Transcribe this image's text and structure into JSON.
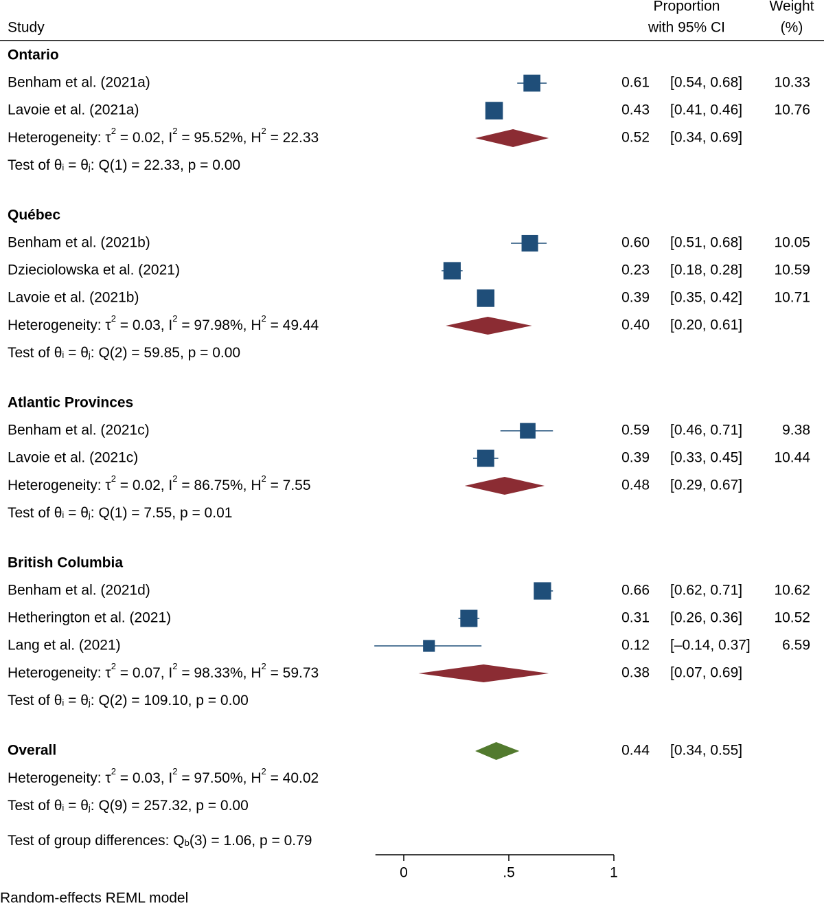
{
  "chart_data": {
    "type": "forest",
    "columns": {
      "study": "Study",
      "effect_line1": "Proportion",
      "effect_line2": "with 95% CI",
      "weight_line1": "Weight",
      "weight_line2": "(%)"
    },
    "colors": {
      "study_marker": "#1f4e79",
      "subgroup_diamond": "#8b2c33",
      "overall_diamond": "#527a2e",
      "text": "#000000"
    },
    "xaxis": {
      "range": [
        -0.135,
        1
      ],
      "ticks": [
        0,
        0.5,
        1
      ],
      "tick_labels": [
        "0",
        ".5",
        "1"
      ]
    },
    "groups": [
      {
        "name": "Ontario",
        "studies": [
          {
            "label": "Benham et al. (2021a)",
            "est": 0.61,
            "lo": 0.54,
            "hi": 0.68,
            "est_text": "0.61",
            "ci_text": "[0.54,  0.68]",
            "weight": 10.33,
            "weight_text": "10.33"
          },
          {
            "label": "Lavoie et al. (2021a)",
            "est": 0.43,
            "lo": 0.41,
            "hi": 0.46,
            "est_text": "0.43",
            "ci_text": "[0.41,  0.46]",
            "weight": 10.76,
            "weight_text": "10.76"
          }
        ],
        "summary": {
          "est": 0.52,
          "lo": 0.34,
          "hi": 0.69,
          "est_text": "0.52",
          "ci_text": "[0.34,  0.69]",
          "het": {
            "tau2": "0.02",
            "i2": "95.52%",
            "h2": "22.33"
          }
        },
        "test": {
          "df": "1",
          "q": "22.33",
          "p": "0.00"
        }
      },
      {
        "name": "Québec",
        "studies": [
          {
            "label": "Benham et al. (2021b)",
            "est": 0.6,
            "lo": 0.51,
            "hi": 0.68,
            "est_text": "0.60",
            "ci_text": "[0.51,  0.68]",
            "weight": 10.05,
            "weight_text": "10.05"
          },
          {
            "label": "Dzieciolowska et al. (2021)",
            "est": 0.23,
            "lo": 0.18,
            "hi": 0.28,
            "est_text": "0.23",
            "ci_text": "[0.18,  0.28]",
            "weight": 10.59,
            "weight_text": "10.59"
          },
          {
            "label": "Lavoie et al. (2021b)",
            "est": 0.39,
            "lo": 0.35,
            "hi": 0.42,
            "est_text": "0.39",
            "ci_text": "[0.35,  0.42]",
            "weight": 10.71,
            "weight_text": "10.71"
          }
        ],
        "summary": {
          "est": 0.4,
          "lo": 0.2,
          "hi": 0.61,
          "est_text": "0.40",
          "ci_text": "[0.20,  0.61]",
          "het": {
            "tau2": "0.03",
            "i2": "97.98%",
            "h2": "49.44"
          }
        },
        "test": {
          "df": "2",
          "q": "59.85",
          "p": "0.00"
        }
      },
      {
        "name": "Atlantic Provinces",
        "studies": [
          {
            "label": "Benham et al. (2021c)",
            "est": 0.59,
            "lo": 0.46,
            "hi": 0.71,
            "est_text": "0.59",
            "ci_text": "[0.46,  0.71]",
            "weight": 9.38,
            "weight_text": "9.38"
          },
          {
            "label": "Lavoie et al. (2021c)",
            "est": 0.39,
            "lo": 0.33,
            "hi": 0.45,
            "est_text": "0.39",
            "ci_text": "[0.33,  0.45]",
            "weight": 10.44,
            "weight_text": "10.44"
          }
        ],
        "summary": {
          "est": 0.48,
          "lo": 0.29,
          "hi": 0.67,
          "est_text": "0.48",
          "ci_text": "[0.29,  0.67]",
          "het": {
            "tau2": "0.02",
            "i2": "86.75%",
            "h2": "7.55"
          }
        },
        "test": {
          "df": "1",
          "q": "7.55",
          "p": "0.01"
        }
      },
      {
        "name": "British Columbia",
        "studies": [
          {
            "label": "Benham et al. (2021d)",
            "est": 0.66,
            "lo": 0.62,
            "hi": 0.71,
            "est_text": "0.66",
            "ci_text": "[0.62,  0.71]",
            "weight": 10.62,
            "weight_text": "10.62"
          },
          {
            "label": "Hetherington et al. (2021)",
            "est": 0.31,
            "lo": 0.26,
            "hi": 0.36,
            "est_text": "0.31",
            "ci_text": "[0.26,  0.36]",
            "weight": 10.52,
            "weight_text": "10.52"
          },
          {
            "label": "Lang et al. (2021)",
            "est": 0.12,
            "lo": -0.14,
            "hi": 0.37,
            "est_text": "0.12",
            "ci_text": "[–0.14,  0.37]",
            "weight": 6.59,
            "weight_text": "6.59"
          }
        ],
        "summary": {
          "est": 0.38,
          "lo": 0.07,
          "hi": 0.69,
          "est_text": "0.38",
          "ci_text": "[0.07,  0.69]",
          "het": {
            "tau2": "0.07",
            "i2": "98.33%",
            "h2": "59.73"
          }
        },
        "test": {
          "df": "2",
          "q": "109.10",
          "p": "0.00"
        }
      }
    ],
    "overall": {
      "label": "Overall",
      "est": 0.44,
      "lo": 0.34,
      "hi": 0.55,
      "est_text": "0.44",
      "ci_text": "[0.34,  0.55]",
      "het": {
        "tau2": "0.03",
        "i2": "97.50%",
        "h2": "40.02"
      },
      "test": {
        "df": "9",
        "q": "257.32",
        "p": "0.00"
      }
    },
    "group_test": {
      "df": "3",
      "q": "1.06",
      "p": "0.79"
    },
    "note": "Random-effects REML model"
  }
}
